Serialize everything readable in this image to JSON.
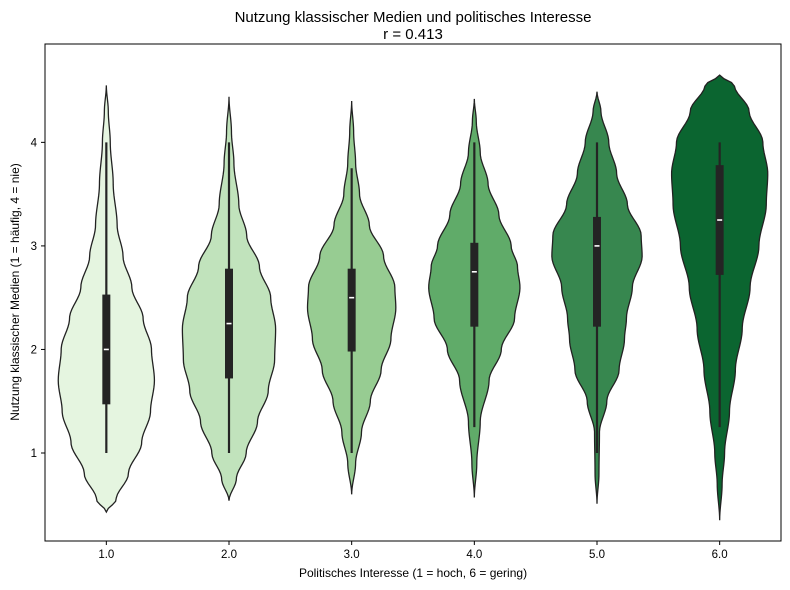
{
  "chart_data": {
    "type": "violin",
    "title": "Nutzung klassischer Medien und politisches Interesse",
    "subtitle": "r = 0.413",
    "xlabel": "Politisches Interesse (1 = hoch, 6 = gering)",
    "ylabel": "Nutzung klassischer Medien (1 = häufig, 4 = nie)",
    "categories": [
      "1.0",
      "2.0",
      "3.0",
      "4.0",
      "5.0",
      "6.0"
    ],
    "yticks": [
      1,
      2,
      3,
      4
    ],
    "ylim": [
      0.15,
      4.95
    ],
    "grid": false,
    "legend": "none",
    "colors": [
      "#e5f5e0",
      "#c1e3bc",
      "#97cc92",
      "#60ab69",
      "#37874f",
      "#0b6530"
    ],
    "violins": [
      {
        "category": "1.0",
        "min": 1.0,
        "q1": 1.47,
        "median": 2.0,
        "q3": 2.53,
        "max": 4.0,
        "kde_min": 0.43,
        "kde_max": 4.55,
        "density": [
          [
            0.43,
            0.0
          ],
          [
            0.55,
            0.2
          ],
          [
            0.8,
            0.45
          ],
          [
            1.1,
            0.72
          ],
          [
            1.4,
            0.9
          ],
          [
            1.7,
            0.98
          ],
          [
            2.0,
            0.92
          ],
          [
            2.3,
            0.75
          ],
          [
            2.6,
            0.52
          ],
          [
            2.9,
            0.34
          ],
          [
            3.2,
            0.22
          ],
          [
            3.6,
            0.14
          ],
          [
            4.0,
            0.08
          ],
          [
            4.3,
            0.04
          ],
          [
            4.55,
            0.0
          ]
        ]
      },
      {
        "category": "2.0",
        "min": 1.0,
        "q1": 1.72,
        "median": 2.25,
        "q3": 2.78,
        "max": 4.0,
        "kde_min": 0.54,
        "kde_max": 4.44,
        "density": [
          [
            0.54,
            0.0
          ],
          [
            0.75,
            0.15
          ],
          [
            1.0,
            0.35
          ],
          [
            1.3,
            0.58
          ],
          [
            1.6,
            0.8
          ],
          [
            1.9,
            0.93
          ],
          [
            2.2,
            0.95
          ],
          [
            2.5,
            0.85
          ],
          [
            2.8,
            0.62
          ],
          [
            3.1,
            0.36
          ],
          [
            3.4,
            0.2
          ],
          [
            3.8,
            0.1
          ],
          [
            4.1,
            0.05
          ],
          [
            4.44,
            0.0
          ]
        ]
      },
      {
        "category": "3.0",
        "min": 1.0,
        "q1": 1.98,
        "median": 2.5,
        "q3": 2.78,
        "max": 3.75,
        "kde_min": 0.6,
        "kde_max": 4.4,
        "density": [
          [
            0.6,
            0.0
          ],
          [
            0.9,
            0.08
          ],
          [
            1.2,
            0.2
          ],
          [
            1.5,
            0.38
          ],
          [
            1.8,
            0.6
          ],
          [
            2.1,
            0.8
          ],
          [
            2.4,
            0.9
          ],
          [
            2.6,
            0.88
          ],
          [
            2.9,
            0.65
          ],
          [
            3.2,
            0.36
          ],
          [
            3.5,
            0.16
          ],
          [
            3.8,
            0.08
          ],
          [
            4.1,
            0.04
          ],
          [
            4.4,
            0.0
          ]
        ]
      },
      {
        "category": "4.0",
        "min": 1.25,
        "q1": 2.22,
        "median": 2.75,
        "q3": 3.03,
        "max": 4.0,
        "kde_min": 0.57,
        "kde_max": 4.42,
        "density": [
          [
            0.57,
            0.0
          ],
          [
            0.9,
            0.05
          ],
          [
            1.3,
            0.12
          ],
          [
            1.7,
            0.3
          ],
          [
            2.0,
            0.55
          ],
          [
            2.3,
            0.82
          ],
          [
            2.6,
            0.93
          ],
          [
            2.8,
            0.88
          ],
          [
            3.0,
            0.75
          ],
          [
            3.3,
            0.5
          ],
          [
            3.6,
            0.28
          ],
          [
            3.9,
            0.12
          ],
          [
            4.2,
            0.04
          ],
          [
            4.42,
            0.0
          ]
        ]
      },
      {
        "category": "5.0",
        "min": 1.0,
        "q1": 2.22,
        "median": 3.0,
        "q3": 3.28,
        "max": 4.0,
        "kde_min": 0.51,
        "kde_max": 4.49,
        "density": [
          [
            0.51,
            0.0
          ],
          [
            0.8,
            0.04
          ],
          [
            1.2,
            0.05
          ],
          [
            1.5,
            0.2
          ],
          [
            1.8,
            0.45
          ],
          [
            2.1,
            0.56
          ],
          [
            2.3,
            0.6
          ],
          [
            2.6,
            0.72
          ],
          [
            2.9,
            0.92
          ],
          [
            3.1,
            0.9
          ],
          [
            3.4,
            0.62
          ],
          [
            3.7,
            0.4
          ],
          [
            4.0,
            0.24
          ],
          [
            4.3,
            0.08
          ],
          [
            4.49,
            0.0
          ]
        ]
      },
      {
        "category": "6.0",
        "min": 1.25,
        "q1": 2.72,
        "median": 3.25,
        "q3": 3.78,
        "max": 4.0,
        "kde_min": 0.35,
        "kde_max": 4.65,
        "density": [
          [
            0.35,
            0.0
          ],
          [
            0.7,
            0.05
          ],
          [
            1.0,
            0.1
          ],
          [
            1.4,
            0.2
          ],
          [
            1.8,
            0.32
          ],
          [
            2.2,
            0.46
          ],
          [
            2.6,
            0.62
          ],
          [
            3.0,
            0.8
          ],
          [
            3.4,
            0.95
          ],
          [
            3.7,
            0.98
          ],
          [
            4.0,
            0.88
          ],
          [
            4.3,
            0.6
          ],
          [
            4.55,
            0.3
          ],
          [
            4.65,
            0.0
          ]
        ]
      }
    ]
  }
}
